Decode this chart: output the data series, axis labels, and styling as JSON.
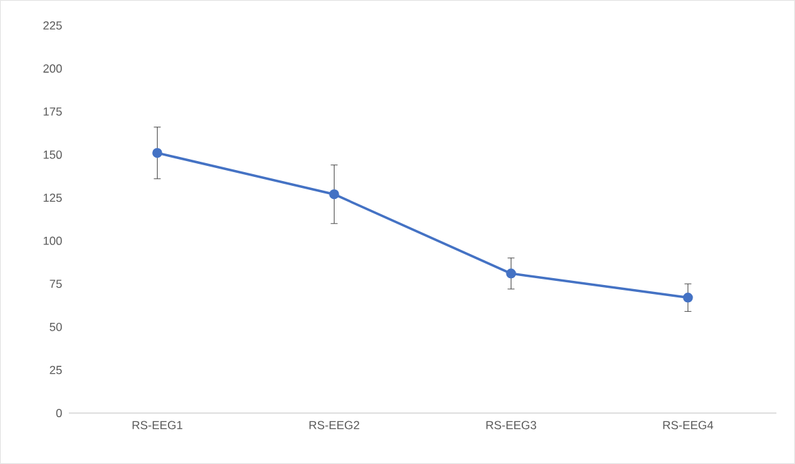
{
  "chart_data": {
    "type": "line",
    "categories": [
      "RS-EEG1",
      "RS-EEG2",
      "RS-EEG3",
      "RS-EEG4"
    ],
    "values": [
      151,
      127,
      81,
      67
    ],
    "errors": [
      15,
      17,
      9,
      8
    ],
    "color": "#4472c4",
    "marker": "circle",
    "line_style": "solid",
    "ylim": [
      0,
      225
    ],
    "yticks": [
      0,
      25,
      50,
      75,
      100,
      125,
      150,
      175,
      200,
      225
    ],
    "grid": false
  }
}
